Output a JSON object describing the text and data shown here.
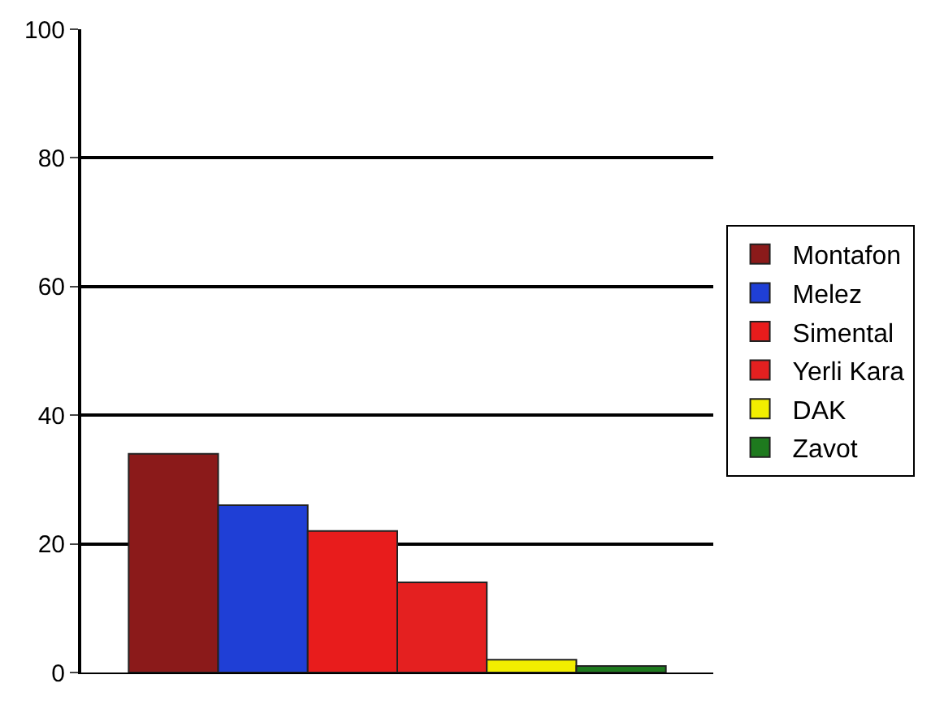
{
  "chart_data": {
    "type": "bar",
    "categories": [
      null
    ],
    "series": [
      {
        "name": "Montafon",
        "color": "#8b1a1a",
        "values": [
          34
        ]
      },
      {
        "name": "Melez",
        "color": "#1f3fd6",
        "values": [
          26
        ]
      },
      {
        "name": "Simental",
        "color": "#e81c1c",
        "values": [
          22
        ]
      },
      {
        "name": "Yerli Kara",
        "color": "#e42020",
        "values": [
          14
        ]
      },
      {
        "name": "DAK",
        "color": "#f2ee00",
        "values": [
          2
        ]
      },
      {
        "name": "Zavot",
        "color": "#1e7a1e",
        "values": [
          1
        ]
      }
    ],
    "ylim": [
      0,
      100
    ],
    "yticks": [
      0,
      20,
      40,
      60,
      80,
      100
    ],
    "grid": "y",
    "legend": "right"
  }
}
